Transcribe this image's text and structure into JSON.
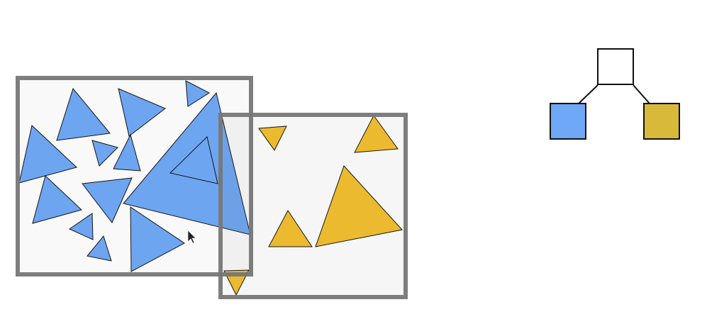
{
  "colors": {
    "background": "#ffffff",
    "blue": "#6ea8f7",
    "gold": "#f5c02c",
    "tree_gold": "#d8b93a",
    "box_border": "#777777",
    "stroke": "#111111"
  },
  "icons": {
    "cursor": "mouse-pointer-icon"
  }
}
